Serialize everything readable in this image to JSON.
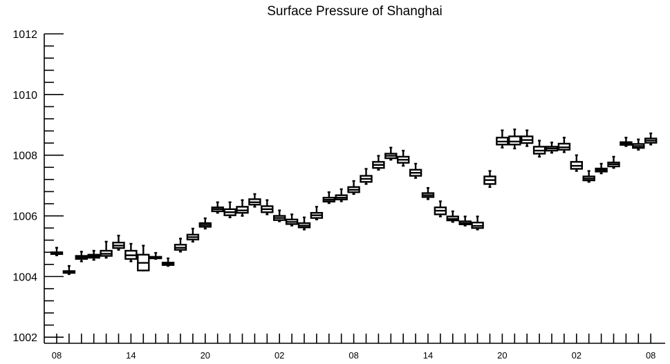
{
  "chart_data": {
    "type": "box",
    "title": "Surface Pressure of Shanghai",
    "xlabel": "",
    "ylabel": "",
    "ylim": [
      1001.8,
      1012
    ],
    "yticks": [
      1002,
      1004,
      1006,
      1008,
      1010,
      1012
    ],
    "xtick_labels": [
      "08",
      "14",
      "20",
      "02",
      "08",
      "14",
      "20",
      "02",
      "08"
    ],
    "xtick_label_slots": [
      0,
      6,
      12,
      18,
      24,
      30,
      36,
      42,
      48
    ],
    "n_slots": 49,
    "grid": false,
    "boxes": [
      {
        "slot": 0,
        "min": 1004.7,
        "q1": 1004.74,
        "median": 1004.77,
        "q3": 1004.8,
        "max": 1004.95
      },
      {
        "slot": 1,
        "min": 1004.08,
        "q1": 1004.12,
        "median": 1004.15,
        "q3": 1004.18,
        "max": 1004.35
      },
      {
        "slot": 2,
        "min": 1004.5,
        "q1": 1004.58,
        "median": 1004.63,
        "q3": 1004.68,
        "max": 1004.82
      },
      {
        "slot": 3,
        "min": 1004.55,
        "q1": 1004.62,
        "median": 1004.67,
        "q3": 1004.72,
        "max": 1004.85
      },
      {
        "slot": 4,
        "min": 1004.62,
        "q1": 1004.68,
        "median": 1004.75,
        "q3": 1004.85,
        "max": 1005.15
      },
      {
        "slot": 5,
        "min": 1004.88,
        "q1": 1004.94,
        "median": 1005.02,
        "q3": 1005.12,
        "max": 1005.35
      },
      {
        "slot": 6,
        "min": 1004.5,
        "q1": 1004.58,
        "median": 1004.7,
        "q3": 1004.85,
        "max": 1005.08
      },
      {
        "slot": 7,
        "min": 1004.2,
        "q1": 1004.2,
        "median": 1004.45,
        "q3": 1004.72,
        "max": 1005.02
      },
      {
        "slot": 8,
        "min": 1004.58,
        "q1": 1004.6,
        "median": 1004.63,
        "q3": 1004.65,
        "max": 1004.78
      },
      {
        "slot": 9,
        "min": 1004.35,
        "q1": 1004.38,
        "median": 1004.42,
        "q3": 1004.46,
        "max": 1004.6
      },
      {
        "slot": 10,
        "min": 1004.82,
        "q1": 1004.88,
        "median": 1004.95,
        "q3": 1005.05,
        "max": 1005.25
      },
      {
        "slot": 11,
        "min": 1005.15,
        "q1": 1005.22,
        "median": 1005.3,
        "q3": 1005.38,
        "max": 1005.58
      },
      {
        "slot": 12,
        "min": 1005.58,
        "q1": 1005.64,
        "median": 1005.7,
        "q3": 1005.76,
        "max": 1005.92
      },
      {
        "slot": 13,
        "min": 1006.1,
        "q1": 1006.15,
        "median": 1006.22,
        "q3": 1006.28,
        "max": 1006.45
      },
      {
        "slot": 14,
        "min": 1005.95,
        "q1": 1006.02,
        "median": 1006.12,
        "q3": 1006.22,
        "max": 1006.45
      },
      {
        "slot": 15,
        "min": 1006.0,
        "q1": 1006.1,
        "median": 1006.18,
        "q3": 1006.3,
        "max": 1006.52
      },
      {
        "slot": 16,
        "min": 1006.3,
        "q1": 1006.37,
        "median": 1006.45,
        "q3": 1006.55,
        "max": 1006.72
      },
      {
        "slot": 17,
        "min": 1006.05,
        "q1": 1006.12,
        "median": 1006.22,
        "q3": 1006.32,
        "max": 1006.52
      },
      {
        "slot": 18,
        "min": 1005.82,
        "q1": 1005.86,
        "median": 1005.93,
        "q3": 1006.0,
        "max": 1006.18
      },
      {
        "slot": 19,
        "min": 1005.68,
        "q1": 1005.73,
        "median": 1005.8,
        "q3": 1005.88,
        "max": 1006.05
      },
      {
        "slot": 20,
        "min": 1005.55,
        "q1": 1005.62,
        "median": 1005.68,
        "q3": 1005.76,
        "max": 1005.95
      },
      {
        "slot": 21,
        "min": 1005.88,
        "q1": 1005.93,
        "median": 1006.02,
        "q3": 1006.1,
        "max": 1006.3
      },
      {
        "slot": 22,
        "min": 1006.42,
        "q1": 1006.47,
        "median": 1006.53,
        "q3": 1006.6,
        "max": 1006.78
      },
      {
        "slot": 23,
        "min": 1006.48,
        "q1": 1006.54,
        "median": 1006.6,
        "q3": 1006.68,
        "max": 1006.88
      },
      {
        "slot": 24,
        "min": 1006.72,
        "q1": 1006.78,
        "median": 1006.86,
        "q3": 1006.95,
        "max": 1007.15
      },
      {
        "slot": 25,
        "min": 1007.05,
        "q1": 1007.12,
        "median": 1007.22,
        "q3": 1007.32,
        "max": 1007.55
      },
      {
        "slot": 26,
        "min": 1007.52,
        "q1": 1007.58,
        "median": 1007.68,
        "q3": 1007.78,
        "max": 1007.98
      },
      {
        "slot": 27,
        "min": 1007.85,
        "q1": 1007.9,
        "median": 1007.98,
        "q3": 1008.05,
        "max": 1008.25
      },
      {
        "slot": 28,
        "min": 1007.65,
        "q1": 1007.75,
        "median": 1007.85,
        "q3": 1007.95,
        "max": 1008.15
      },
      {
        "slot": 29,
        "min": 1007.25,
        "q1": 1007.32,
        "median": 1007.42,
        "q3": 1007.52,
        "max": 1007.72
      },
      {
        "slot": 30,
        "min": 1006.55,
        "q1": 1006.62,
        "median": 1006.68,
        "q3": 1006.75,
        "max": 1006.92
      },
      {
        "slot": 31,
        "min": 1005.98,
        "q1": 1006.05,
        "median": 1006.17,
        "q3": 1006.28,
        "max": 1006.48
      },
      {
        "slot": 32,
        "min": 1005.8,
        "q1": 1005.85,
        "median": 1005.9,
        "q3": 1005.98,
        "max": 1006.15
      },
      {
        "slot": 33,
        "min": 1005.68,
        "q1": 1005.72,
        "median": 1005.76,
        "q3": 1005.82,
        "max": 1005.98
      },
      {
        "slot": 34,
        "min": 1005.55,
        "q1": 1005.6,
        "median": 1005.67,
        "q3": 1005.78,
        "max": 1005.98
      },
      {
        "slot": 35,
        "min": 1006.95,
        "q1": 1007.05,
        "median": 1007.18,
        "q3": 1007.3,
        "max": 1007.48
      },
      {
        "slot": 36,
        "min": 1008.25,
        "q1": 1008.35,
        "median": 1008.45,
        "q3": 1008.58,
        "max": 1008.82
      },
      {
        "slot": 37,
        "min": 1008.22,
        "q1": 1008.35,
        "median": 1008.45,
        "q3": 1008.62,
        "max": 1008.85
      },
      {
        "slot": 38,
        "min": 1008.3,
        "q1": 1008.4,
        "median": 1008.5,
        "q3": 1008.62,
        "max": 1008.82
      },
      {
        "slot": 39,
        "min": 1007.95,
        "q1": 1008.05,
        "median": 1008.15,
        "q3": 1008.28,
        "max": 1008.48
      },
      {
        "slot": 40,
        "min": 1008.08,
        "q1": 1008.15,
        "median": 1008.22,
        "q3": 1008.28,
        "max": 1008.42
      },
      {
        "slot": 41,
        "min": 1008.1,
        "q1": 1008.18,
        "median": 1008.26,
        "q3": 1008.38,
        "max": 1008.58
      },
      {
        "slot": 42,
        "min": 1007.48,
        "q1": 1007.55,
        "median": 1007.65,
        "q3": 1007.78,
        "max": 1008.0
      },
      {
        "slot": 43,
        "min": 1007.12,
        "q1": 1007.17,
        "median": 1007.23,
        "q3": 1007.3,
        "max": 1007.48
      },
      {
        "slot": 44,
        "min": 1007.4,
        "q1": 1007.46,
        "median": 1007.51,
        "q3": 1007.56,
        "max": 1007.72
      },
      {
        "slot": 45,
        "min": 1007.58,
        "q1": 1007.63,
        "median": 1007.7,
        "q3": 1007.76,
        "max": 1007.95
      },
      {
        "slot": 46,
        "min": 1008.3,
        "q1": 1008.34,
        "median": 1008.38,
        "q3": 1008.43,
        "max": 1008.58
      },
      {
        "slot": 47,
        "min": 1008.18,
        "q1": 1008.24,
        "median": 1008.3,
        "q3": 1008.37,
        "max": 1008.52
      },
      {
        "slot": 48,
        "min": 1008.35,
        "q1": 1008.41,
        "median": 1008.48,
        "q3": 1008.55,
        "max": 1008.72
      }
    ]
  }
}
